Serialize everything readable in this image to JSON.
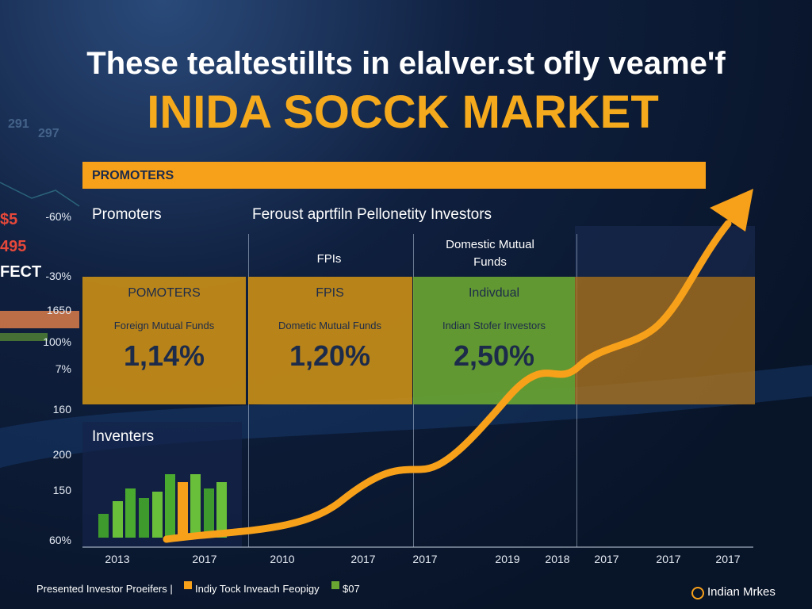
{
  "header": {
    "title": "These tealtestillts in elalver.st ofly veame'f",
    "subtitle": "INIDA SOCCK MARKET"
  },
  "background": [
    "291",
    "297",
    "$5",
    "495",
    "FECT"
  ],
  "banner": "PROMOTERS",
  "headings": [
    "Promoters",
    "Feroust aprtfiln Pellonetity Investors"
  ],
  "column_labels": [
    "FPIs",
    "Domestic Mutual Funds"
  ],
  "boxes": [
    {
      "title": "POMOTERS",
      "subtitle": "Foreign Mutual Funds",
      "value": "1,14%"
    },
    {
      "title": "FPIS",
      "subtitle": "Dometic Mutual Funds",
      "value": "1,20%"
    },
    {
      "title": "Indivdual",
      "subtitle": "Indian Stofer Investors",
      "value": "2,50%"
    }
  ],
  "panel_title": "Inventers",
  "axis_labels": [
    "-60%",
    "-30%",
    "1650",
    "100%",
    "7%",
    "160",
    "200",
    "150",
    "60%"
  ],
  "years": [
    "2013",
    "2017",
    "2010",
    "2017",
    "2017",
    "2019",
    "2018",
    "2017",
    "2017",
    "2017"
  ],
  "footer": [
    "Presented Investor Proeifers |",
    "Indiy Tock Inveach Feopigy",
    "$07",
    "Indian Mrkes"
  ]
}
